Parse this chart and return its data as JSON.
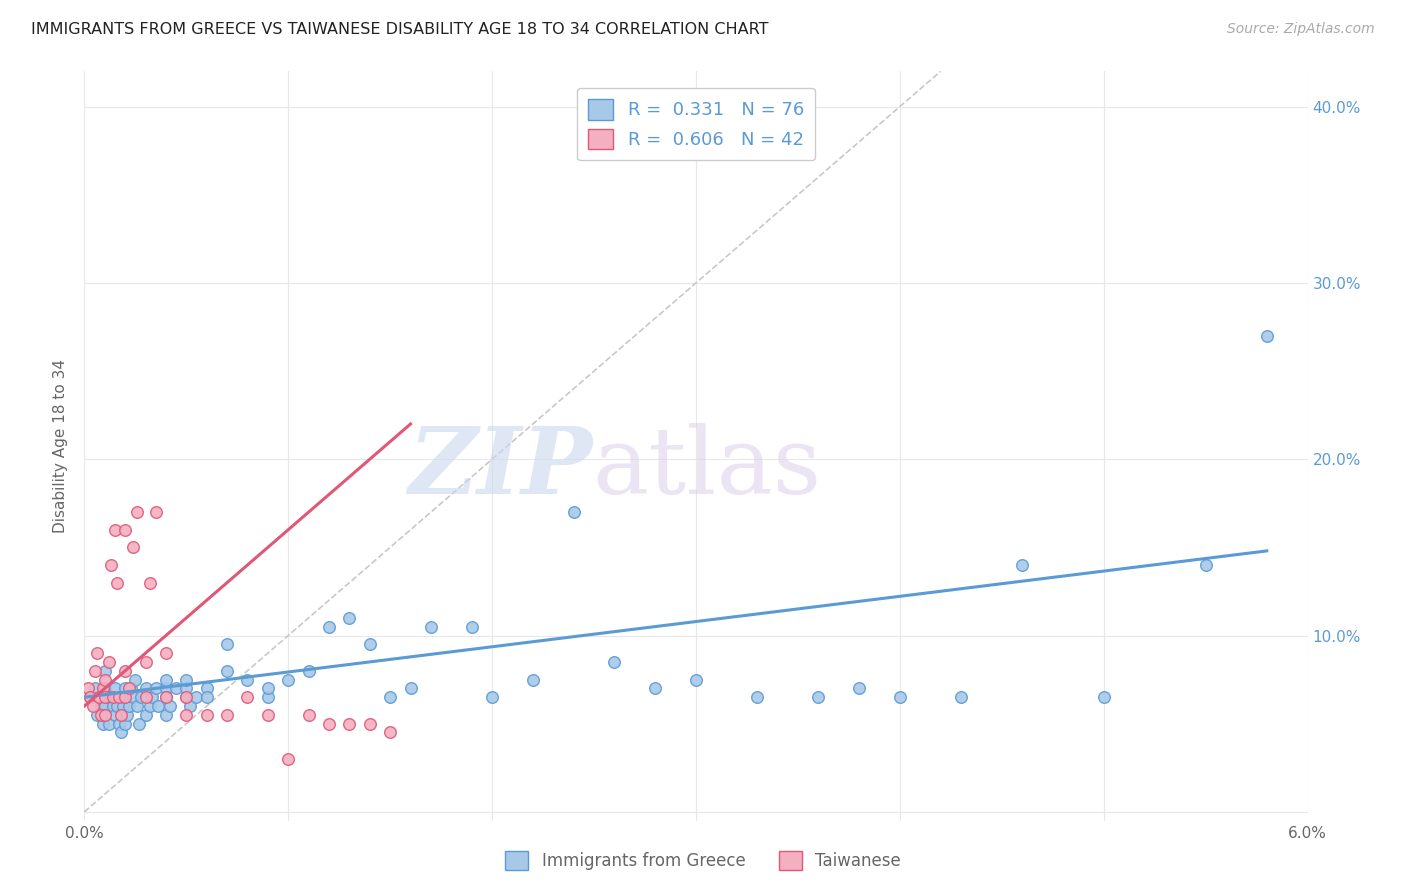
{
  "title": "IMMIGRANTS FROM GREECE VS TAIWANESE DISABILITY AGE 18 TO 34 CORRELATION CHART",
  "source": "Source: ZipAtlas.com",
  "ylabel": "Disability Age 18 to 34",
  "xlim": [
    0.0,
    0.06
  ],
  "ylim": [
    -0.005,
    0.42
  ],
  "xticks": [
    0.0,
    0.01,
    0.02,
    0.03,
    0.04,
    0.05,
    0.06
  ],
  "xticklabels": [
    "0.0%",
    "",
    "",
    "",
    "",
    "",
    "6.0%"
  ],
  "yticks": [
    0.0,
    0.1,
    0.2,
    0.3,
    0.4
  ],
  "yticklabels_right": [
    "",
    "10.0%",
    "20.0%",
    "30.0%",
    "40.0%"
  ],
  "legend_r1": "R =  0.331",
  "legend_n1": "N = 76",
  "legend_r2": "R =  0.606",
  "legend_n2": "N = 42",
  "color_blue": "#a8c8e8",
  "color_pink": "#f4b0c0",
  "color_blue_line": "#5b9bd5",
  "color_pink_line": "#e05878",
  "color_diag": "#c8c8c8",
  "color_grid": "#e8e8e8",
  "scatter_blue_x": [
    0.0003,
    0.0005,
    0.0006,
    0.0008,
    0.0009,
    0.001,
    0.001,
    0.001,
    0.0012,
    0.0012,
    0.0014,
    0.0015,
    0.0015,
    0.0016,
    0.0017,
    0.0018,
    0.0019,
    0.002,
    0.002,
    0.002,
    0.0021,
    0.0022,
    0.0023,
    0.0024,
    0.0025,
    0.0026,
    0.0027,
    0.0028,
    0.003,
    0.003,
    0.0032,
    0.0033,
    0.0035,
    0.0036,
    0.004,
    0.004,
    0.004,
    0.004,
    0.0042,
    0.0045,
    0.005,
    0.005,
    0.005,
    0.0052,
    0.0055,
    0.006,
    0.006,
    0.007,
    0.007,
    0.008,
    0.009,
    0.009,
    0.01,
    0.011,
    0.012,
    0.013,
    0.014,
    0.015,
    0.016,
    0.017,
    0.019,
    0.02,
    0.022,
    0.024,
    0.026,
    0.028,
    0.03,
    0.033,
    0.036,
    0.038,
    0.04,
    0.043,
    0.046,
    0.05,
    0.055,
    0.058
  ],
  "scatter_blue_y": [
    0.065,
    0.07,
    0.055,
    0.06,
    0.05,
    0.06,
    0.07,
    0.08,
    0.05,
    0.065,
    0.06,
    0.055,
    0.07,
    0.06,
    0.05,
    0.045,
    0.06,
    0.065,
    0.07,
    0.05,
    0.055,
    0.06,
    0.07,
    0.065,
    0.075,
    0.06,
    0.05,
    0.065,
    0.055,
    0.07,
    0.06,
    0.065,
    0.07,
    0.06,
    0.055,
    0.07,
    0.075,
    0.065,
    0.06,
    0.07,
    0.065,
    0.07,
    0.075,
    0.06,
    0.065,
    0.07,
    0.065,
    0.08,
    0.095,
    0.075,
    0.065,
    0.07,
    0.075,
    0.08,
    0.105,
    0.11,
    0.095,
    0.065,
    0.07,
    0.105,
    0.105,
    0.065,
    0.075,
    0.17,
    0.085,
    0.07,
    0.075,
    0.065,
    0.065,
    0.07,
    0.065,
    0.065,
    0.14,
    0.065,
    0.14,
    0.27
  ],
  "scatter_pink_x": [
    0.0002,
    0.0003,
    0.0004,
    0.0005,
    0.0006,
    0.0007,
    0.0008,
    0.0009,
    0.001,
    0.001,
    0.001,
    0.0012,
    0.0013,
    0.0014,
    0.0015,
    0.0016,
    0.0017,
    0.0018,
    0.002,
    0.002,
    0.002,
    0.0022,
    0.0024,
    0.0026,
    0.003,
    0.003,
    0.0032,
    0.0035,
    0.004,
    0.004,
    0.005,
    0.005,
    0.006,
    0.007,
    0.008,
    0.009,
    0.01,
    0.011,
    0.012,
    0.013,
    0.014,
    0.015
  ],
  "scatter_pink_y": [
    0.07,
    0.065,
    0.06,
    0.08,
    0.09,
    0.065,
    0.055,
    0.07,
    0.065,
    0.075,
    0.055,
    0.085,
    0.14,
    0.065,
    0.16,
    0.13,
    0.065,
    0.055,
    0.16,
    0.065,
    0.08,
    0.07,
    0.15,
    0.17,
    0.085,
    0.065,
    0.13,
    0.17,
    0.065,
    0.09,
    0.065,
    0.055,
    0.055,
    0.055,
    0.065,
    0.055,
    0.03,
    0.055,
    0.05,
    0.05,
    0.05,
    0.045
  ],
  "blue_line_x": [
    0.0,
    0.058
  ],
  "blue_line_y": [
    0.065,
    0.148
  ],
  "pink_line_x": [
    0.0,
    0.016
  ],
  "pink_line_y": [
    0.06,
    0.22
  ],
  "diag_line_x": [
    0.0,
    0.042
  ],
  "diag_line_y": [
    0.0,
    0.42
  ]
}
